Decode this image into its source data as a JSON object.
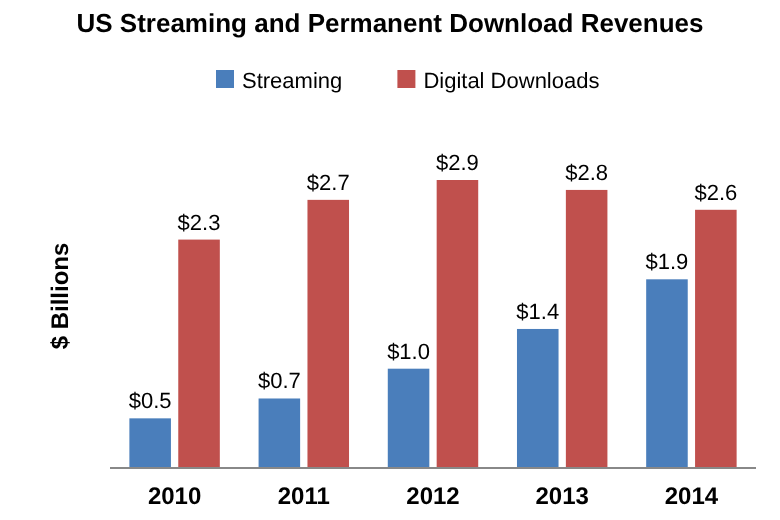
{
  "chart_data": {
    "type": "bar",
    "title": "US Streaming and Permanent Download Revenues",
    "ylabel": "$ Billions",
    "categories": [
      "2010",
      "2011",
      "2012",
      "2013",
      "2014"
    ],
    "legend": "top",
    "series": [
      {
        "name": "Streaming",
        "color": "#4a7ebb",
        "values": [
          0.5,
          0.7,
          1.0,
          1.4,
          1.9
        ],
        "value_labels": [
          "$0.5",
          "$0.7",
          "$1.0",
          "$1.4",
          "$1.9"
        ]
      },
      {
        "name": "Digital Downloads",
        "color": "#c0504d",
        "values": [
          2.3,
          2.7,
          2.9,
          2.8,
          2.6
        ],
        "value_labels": [
          "$2.3",
          "$2.7",
          "$2.9",
          "$2.8",
          "$2.6"
        ]
      }
    ]
  }
}
